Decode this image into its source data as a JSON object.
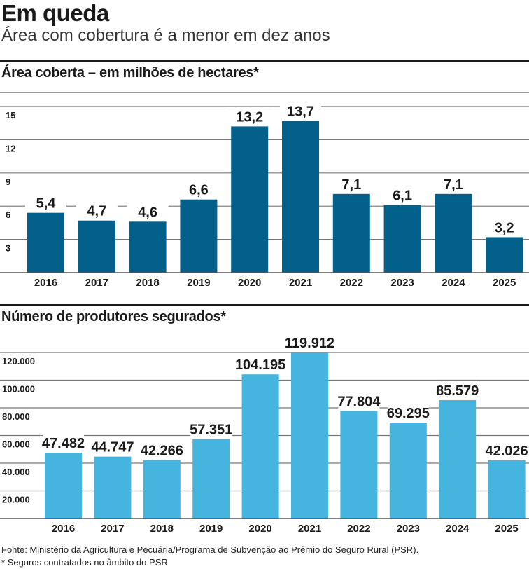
{
  "header": {
    "title": "Em queda",
    "subtitle": "Área com cobertura é a menor em dez anos"
  },
  "chart_data": [
    {
      "type": "bar",
      "title": "Área coberta – em milhões de hectares*",
      "categories": [
        "2016",
        "2017",
        "2018",
        "2019",
        "2020",
        "2021",
        "2022",
        "2023",
        "2024",
        "2025"
      ],
      "values": [
        5.4,
        4.7,
        4.6,
        6.6,
        13.2,
        13.7,
        7.1,
        6.1,
        7.1,
        3.2
      ],
      "value_labels": [
        "5,4",
        "4,7",
        "4,6",
        "6,6",
        "13,2",
        "13,7",
        "7,1",
        "6,1",
        "7,1",
        "3,2"
      ],
      "yticks": [
        3,
        6,
        9,
        12,
        15
      ],
      "ytick_labels": [
        "3",
        "6",
        "9",
        "12",
        "15"
      ],
      "ylim": [
        0,
        15
      ],
      "grid": true,
      "color": "#02608a"
    },
    {
      "type": "bar",
      "title": "Número de produtores segurados*",
      "categories": [
        "2016",
        "2017",
        "2018",
        "2019",
        "2020",
        "2021",
        "2022",
        "2023",
        "2024",
        "2025"
      ],
      "values": [
        47482,
        44747,
        42266,
        57351,
        104195,
        119912,
        77804,
        69295,
        85579,
        42026
      ],
      "value_labels": [
        "47.482",
        "44.747",
        "42.266",
        "57.351",
        "104.195",
        "119.912",
        "77.804",
        "69.295",
        "85.579",
        "42.026"
      ],
      "yticks": [
        20000,
        40000,
        60000,
        80000,
        100000,
        120000
      ],
      "ytick_labels": [
        "20.000",
        "40.000",
        "60.000",
        "80.000",
        "100.000",
        "120.000"
      ],
      "ylim": [
        0,
        120000
      ],
      "grid": true,
      "color": "#45b5e0"
    }
  ],
  "footer": {
    "source": "Fonte: Ministério da Agricultura e Pecuária/Programa de Subvenção ao Prêmio do Seguro Rural (PSR).",
    "note": "* Seguros contratados no âmbito do PSR"
  }
}
